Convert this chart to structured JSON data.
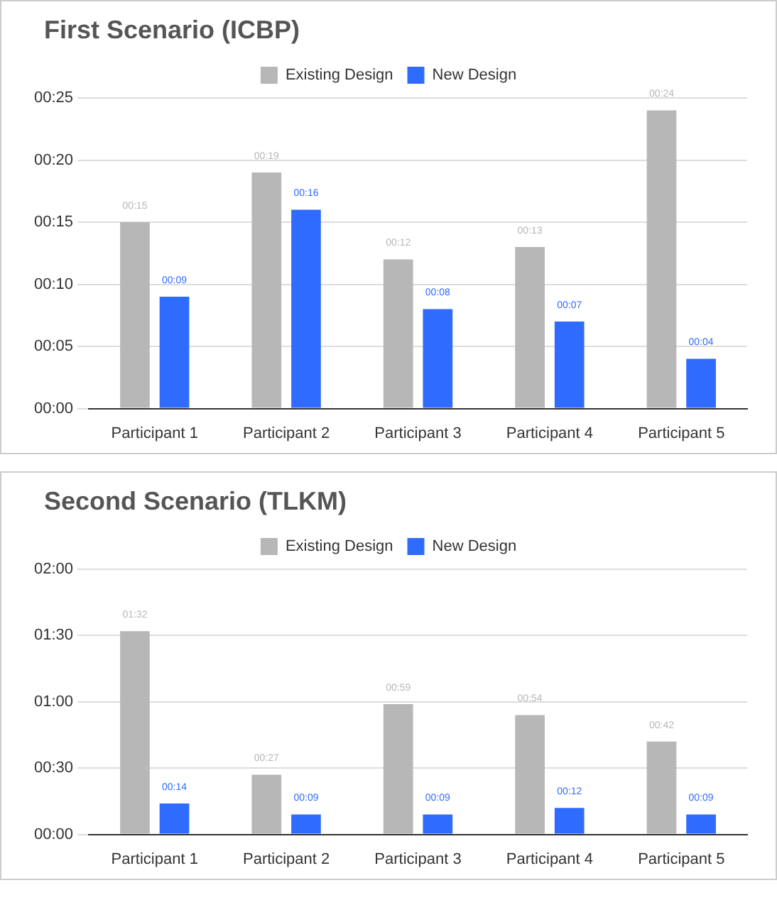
{
  "chart_data": [
    {
      "type": "bar",
      "title": "First Scenario (ICBP)",
      "categories": [
        "Participant 1",
        "Participant 2",
        "Participant 3",
        "Participant 4",
        "Participant 5"
      ],
      "series": [
        {
          "name": "Existing Design",
          "color": "#b7b7b7",
          "values": [
            15,
            19,
            12,
            13,
            24
          ],
          "value_labels": [
            "00:15",
            "00:19",
            "00:12",
            "00:13",
            "00:24"
          ]
        },
        {
          "name": "New Design",
          "color": "#2f6bff",
          "values": [
            9,
            16,
            8,
            7,
            4
          ],
          "value_labels": [
            "00:09",
            "00:16",
            "00:08",
            "00:07",
            "00:04"
          ]
        }
      ],
      "ylim": [
        0,
        25
      ],
      "yticks": [
        {
          "value": 0,
          "label": "00:00"
        },
        {
          "value": 5,
          "label": "00:05"
        },
        {
          "value": 10,
          "label": "00:10"
        },
        {
          "value": 15,
          "label": "00:15"
        },
        {
          "value": 20,
          "label": "00:20"
        },
        {
          "value": 25,
          "label": "00:25"
        }
      ],
      "grid": "y",
      "legend": "top"
    },
    {
      "type": "bar",
      "title": "Second Scenario (TLKM)",
      "categories": [
        "Participant 1",
        "Participant 2",
        "Participant 3",
        "Participant 4",
        "Participant 5"
      ],
      "series": [
        {
          "name": "Existing Design",
          "color": "#b7b7b7",
          "values": [
            92,
            27,
            59,
            54,
            42
          ],
          "value_labels": [
            "01:32",
            "00:27",
            "00:59",
            "00:54",
            "00:42"
          ]
        },
        {
          "name": "New Design",
          "color": "#2f6bff",
          "values": [
            14,
            9,
            9,
            12,
            9
          ],
          "value_labels": [
            "00:14",
            "00:09",
            "00:09",
            "00:12",
            "00:09"
          ]
        }
      ],
      "ylim": [
        0,
        120
      ],
      "yticks": [
        {
          "value": 0,
          "label": "00:00"
        },
        {
          "value": 30,
          "label": "00:30"
        },
        {
          "value": 60,
          "label": "01:00"
        },
        {
          "value": 90,
          "label": "01:30"
        },
        {
          "value": 120,
          "label": "02:00"
        }
      ],
      "grid": "y",
      "legend": "top"
    }
  ]
}
